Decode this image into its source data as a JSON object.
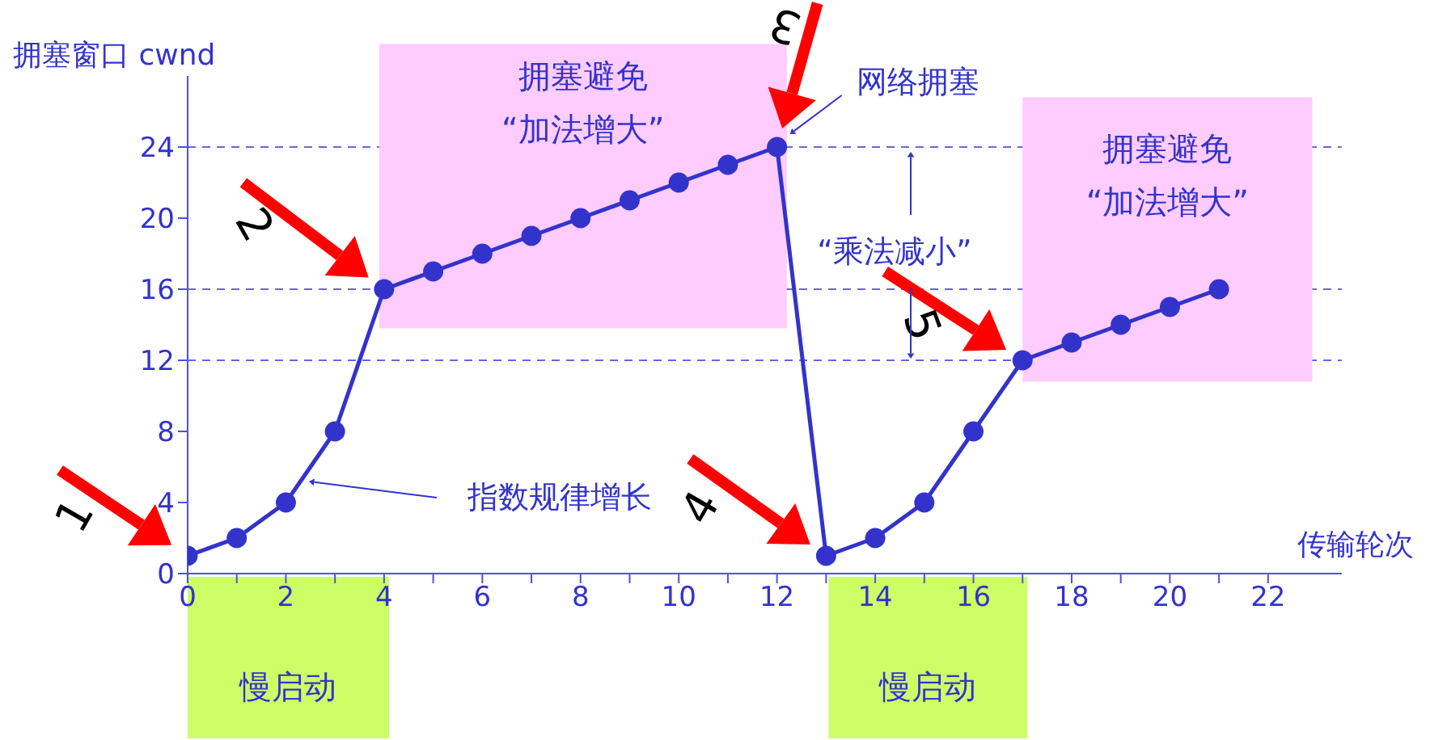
{
  "chart_data": {
    "type": "line",
    "xlabel": "传输轮次",
    "ylabel": "拥塞窗口 cwnd",
    "x": [
      0,
      1,
      2,
      3,
      4,
      5,
      6,
      7,
      8,
      9,
      10,
      11,
      12,
      13,
      14,
      15,
      16,
      17,
      18,
      19,
      20,
      21
    ],
    "series": [
      {
        "color": "#3333cc",
        "values": [
          1,
          2,
          4,
          8,
          16,
          17,
          18,
          19,
          20,
          21,
          22,
          23,
          24,
          1,
          2,
          4,
          8,
          12,
          13,
          14,
          15,
          16
        ]
      }
    ],
    "xlim": [
      0,
      23.5
    ],
    "ylim": [
      0,
      28
    ],
    "xticks": [
      0,
      {
        "value": 1,
        "label": null
      },
      2,
      {
        "value": 3,
        "label": null
      },
      4,
      {
        "value": 5,
        "label": null
      },
      6,
      {
        "value": 7,
        "label": null
      },
      8,
      {
        "value": 9,
        "label": null
      },
      10,
      {
        "value": 11,
        "label": null
      },
      12,
      {
        "value": 13,
        "label": null
      },
      14,
      {
        "value": 15,
        "label": null
      },
      16,
      {
        "value": 17,
        "label": null
      },
      18,
      {
        "value": 19,
        "label": null
      },
      20,
      {
        "value": 21,
        "label": null
      },
      22
    ],
    "yticks": [
      0,
      4,
      8,
      12,
      16,
      20,
      24
    ],
    "ref_lines": [
      {
        "axis": "y",
        "value": 24,
        "color": "#6666dd",
        "line_style": "dashed"
      },
      {
        "axis": "y",
        "value": 16,
        "color": "#6666dd",
        "line_style": "dashed"
      },
      {
        "axis": "y",
        "value": 12,
        "color": "#6666dd",
        "line_style": "dashed"
      }
    ],
    "annotations": [
      {
        "text": "1",
        "x": 0,
        "y": 1
      },
      {
        "text": "2",
        "x": 4,
        "y": 16
      },
      {
        "text": "3",
        "x": 12,
        "y": 24
      },
      {
        "text": "4",
        "x": 13,
        "y": 1
      },
      {
        "text": "5",
        "x": 17,
        "y": 12
      },
      {
        "text": "网络拥塞",
        "x": 12,
        "y": 24
      },
      "拥塞避免",
      "“加法增大”",
      "拥塞避免",
      "“加法增大”",
      "“乘法减小”",
      "指数规律增长",
      "慢启动",
      "慢启动"
    ],
    "marker": "circle",
    "line_style": "solid"
  }
}
